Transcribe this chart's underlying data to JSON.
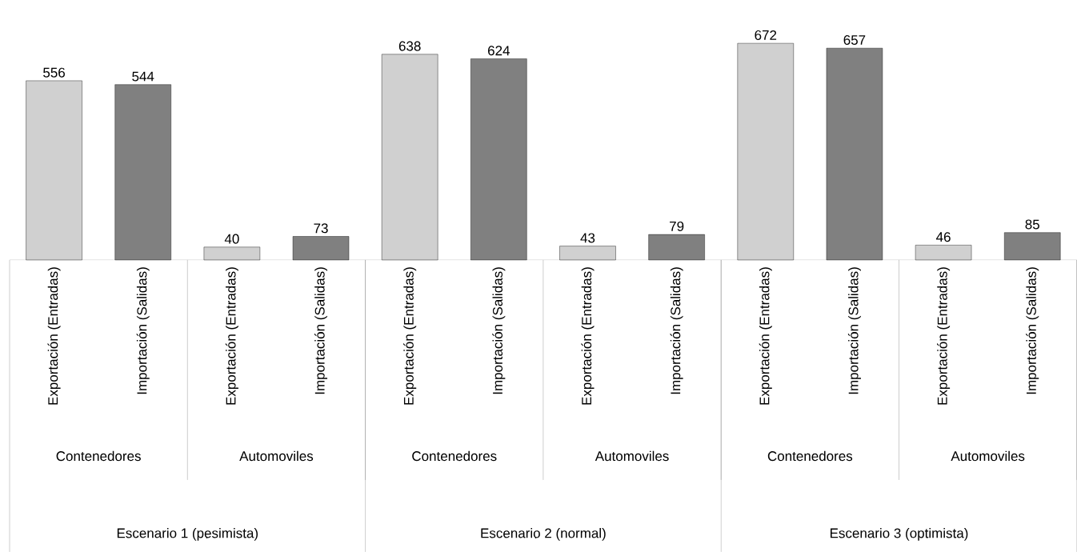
{
  "chart_data": {
    "type": "bar",
    "categories": [
      "Exportación (Entradas)",
      "Importación (Salidas)",
      "Exportación (Entradas)",
      "Importación (Salidas)",
      "Exportación (Entradas)",
      "Importación (Salidas)",
      "Exportación (Entradas)",
      "Importación (Salidas)",
      "Exportación (Entradas)",
      "Importación (Salidas)",
      "Exportación (Entradas)",
      "Importación (Salidas)"
    ],
    "values": [
      556,
      544,
      40,
      73,
      638,
      624,
      43,
      79,
      672,
      657,
      46,
      85
    ],
    "colors": [
      "#d0d0d0",
      "#808080",
      "#d0d0d0",
      "#808080",
      "#d0d0d0",
      "#808080",
      "#d0d0d0",
      "#808080",
      "#d0d0d0",
      "#808080",
      "#d0d0d0",
      "#808080"
    ],
    "data_labels": true,
    "annotations": [
      "Contenedores",
      "Automoviles",
      "Contenedores",
      "Automoviles",
      "Contenedores",
      "Automoviles",
      "Escenario 1 (pesimista)",
      "Escenario 2 (normal)",
      "Escenario 3 (optimista)"
    ]
  }
}
